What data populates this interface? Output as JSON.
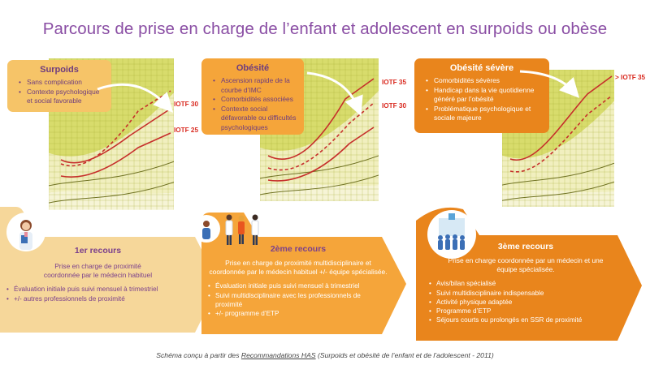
{
  "title": "Parcours de prise en charge de l’enfant et adolescent en surpoids ou obèse",
  "stages": [
    {
      "title": "Surpoids",
      "bullets": [
        "Sans complication",
        "Contexte psychologique et social favorable"
      ],
      "iotf_labels": [
        "IOTF 30",
        "IOTF 25"
      ]
    },
    {
      "title": "Obésité",
      "bullets": [
        "Ascension rapide de la courbe d’IMC",
        "Comorbidités associées",
        "Contexte social défavorable ou difficultés psychologiques"
      ],
      "iotf_labels": [
        "IOTF 35",
        "IOTF 30"
      ]
    },
    {
      "title": "Obésité sévère",
      "bullets": [
        "Comorbidités sévères",
        "Handicap dans la vie quotidienne généré par l’obésité",
        "Problématique psychologique et sociale majeure"
      ],
      "iotf_labels": [
        "> IOTF 35"
      ]
    }
  ],
  "recours": [
    {
      "title": "1er recours",
      "description": "Prise en charge de proximité coordonnée par le médecin habituel",
      "bullets": [
        "Évaluation initiale puis suivi mensuel à trimestriel",
        "+/- autres professionnels de proximité"
      ]
    },
    {
      "title": "2ème recours",
      "description": "Prise en charge de proximité multidisciplinaire et coordonnée par le médecin habituel +/- équipe spécialisée.",
      "bullets": [
        "Évaluation initiale puis suivi mensuel à trimestriel",
        "Suivi multidisciplinaire avec les professionnels de proximité",
        "+/- programme d’ETP"
      ]
    },
    {
      "title": "3ème recours",
      "description": "Prise en charge coordonnée par un médecin et une équipe spécialisée.",
      "bullets": [
        "Avis/bilan spécialisé",
        "Suivi multidisciplinaire indispensable",
        "Activité physique adaptée",
        "Programme d’ETP",
        "Séjours courts ou prolongés en SSR de proximité"
      ]
    }
  ],
  "caption": {
    "prefix": "Schéma conçu à partir des ",
    "link": "Recommandations HAS",
    "suffix": " (Surpoids et obésité de l’enfant et de l’adolescent - 2011)"
  },
  "colors": {
    "title": "#8a4ea4",
    "light_orange": "#f6c468",
    "orange": "#f5a53a",
    "dark_orange": "#e9851c",
    "iotf_red": "#d92a20",
    "curve_red": "#c62f2b",
    "chart_green": "#c9cf55"
  },
  "icons": [
    "doctor-illustration-icon",
    "care-team-illustration-icon",
    "hospital-team-illustration-icon",
    "male-symbol-icon"
  ]
}
